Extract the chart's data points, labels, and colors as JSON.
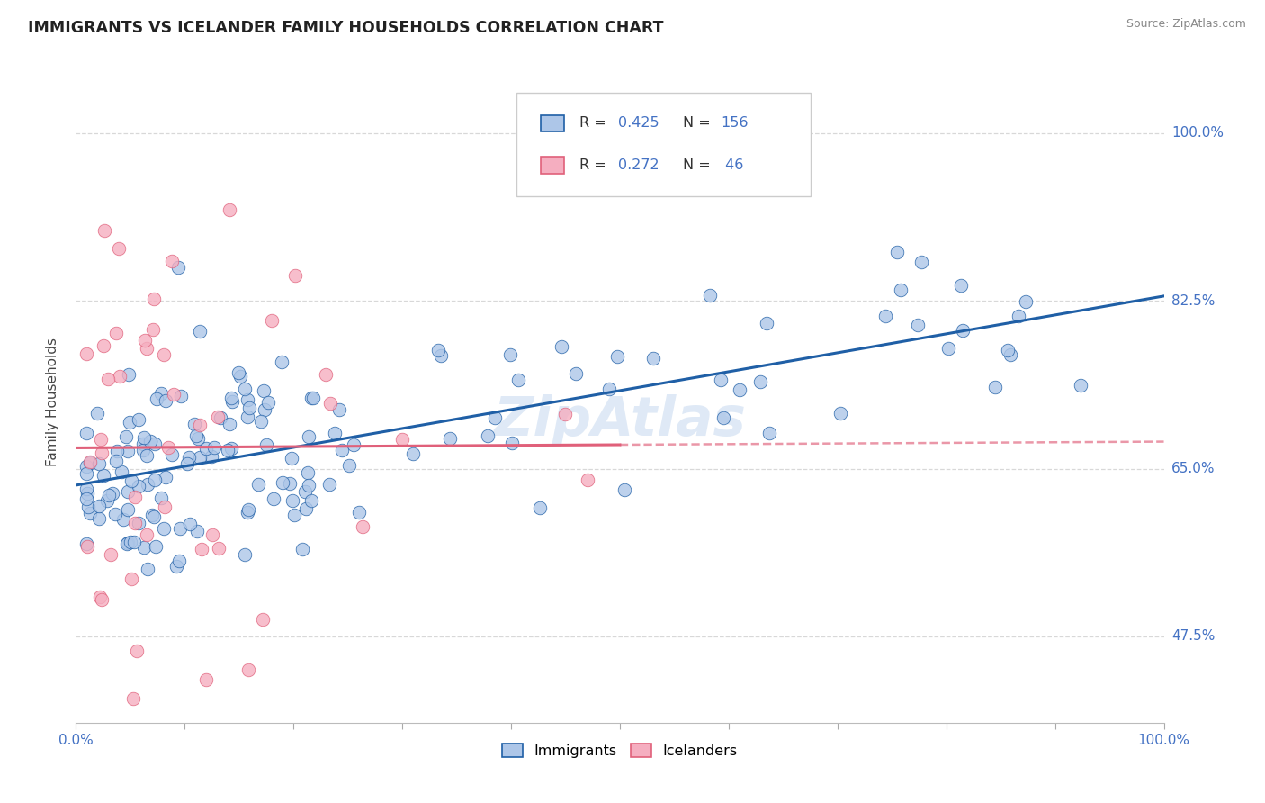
{
  "title": "IMMIGRANTS VS ICELANDER FAMILY HOUSEHOLDS CORRELATION CHART",
  "source": "Source: ZipAtlas.com",
  "ylabel": "Family Households",
  "xmin": 0.0,
  "xmax": 1.0,
  "ymin": 0.385,
  "ymax": 1.055,
  "yticks": [
    0.475,
    0.65,
    0.825,
    1.0
  ],
  "ytick_labels": [
    "47.5%",
    "65.0%",
    "82.5%",
    "100.0%"
  ],
  "r_immigrants": 0.425,
  "n_immigrants": 156,
  "r_icelanders": 0.272,
  "n_icelanders": 46,
  "immigrants_color": "#adc6e8",
  "icelanders_color": "#f5aec0",
  "immigrants_line_color": "#1f5fa6",
  "icelanders_line_color": "#e0607a",
  "legend_immigrants": "Immigrants",
  "legend_icelanders": "Icelanders",
  "watermark": "ZipAtlas",
  "background_color": "#ffffff",
  "grid_color": "#d8d8d8",
  "title_color": "#222222",
  "right_ytick_color": "#4472c4",
  "stats_text_color": "#4472c4",
  "stats_label_color": "#333333"
}
